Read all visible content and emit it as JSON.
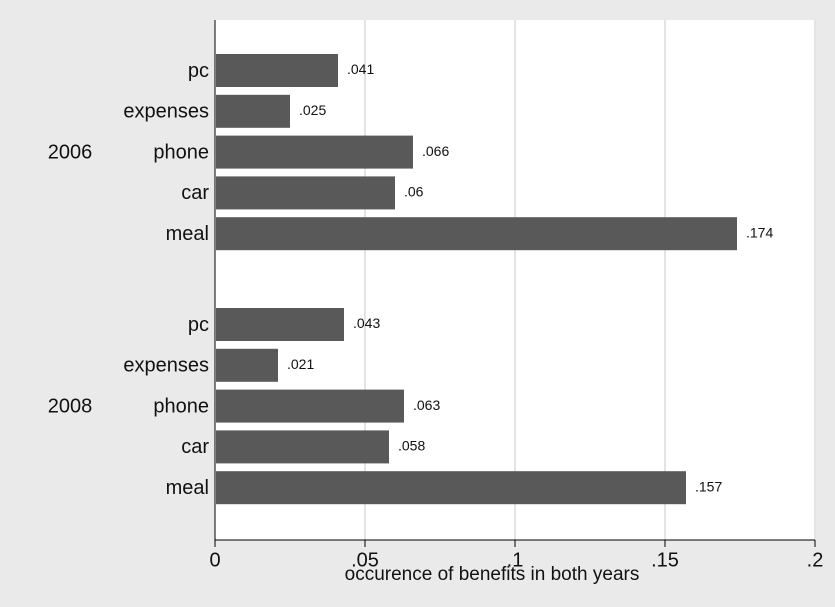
{
  "chart_data": {
    "type": "bar",
    "orientation": "horizontal",
    "title": "",
    "xlabel": "occurence of benefits in both years",
    "ylabel": "",
    "xlim": [
      0,
      0.2
    ],
    "x_ticks": [
      0,
      0.05,
      0.1,
      0.15,
      0.2
    ],
    "x_tick_labels": [
      "0",
      ".05",
      ".1",
      ".15",
      ".2"
    ],
    "grid": "vertical",
    "legend": "none",
    "categories": [
      "pc",
      "expenses",
      "phone",
      "car",
      "meal"
    ],
    "groups": [
      {
        "name": "2006",
        "values": [
          0.041,
          0.025,
          0.066,
          0.06,
          0.174
        ],
        "value_labels": [
          ".041",
          ".025",
          ".066",
          ".06",
          ".174"
        ]
      },
      {
        "name": "2008",
        "values": [
          0.043,
          0.021,
          0.063,
          0.058,
          0.157
        ],
        "value_labels": [
          ".043",
          ".021",
          ".063",
          ".058",
          ".157"
        ]
      }
    ]
  },
  "colors": {
    "background": "#eaeaea",
    "plot_area": "#ffffff",
    "bar": "#595959",
    "grid": "#e4e4e4",
    "axis": "#000000",
    "text": "#111111"
  }
}
